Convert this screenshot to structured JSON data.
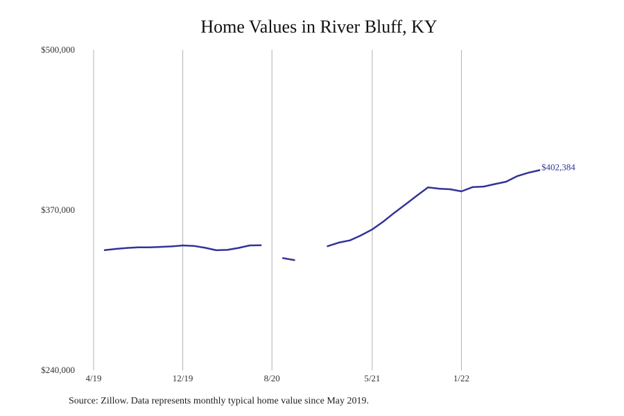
{
  "chart_data": {
    "type": "line",
    "title": "Home Values in River Bluff, KY",
    "xlabel": "",
    "ylabel": "",
    "x_ticks": [
      "4/19",
      "12/19",
      "8/20",
      "5/21",
      "1/22"
    ],
    "x_tick_dates": [
      "2019-04",
      "2019-12",
      "2020-08",
      "2021-05",
      "2022-01"
    ],
    "y_ticks": [
      "$240,000",
      "$370,000",
      "$500,000"
    ],
    "ylim": [
      240000,
      500000
    ],
    "xlim": [
      "2019-04",
      "2022-08"
    ],
    "grid": "vertical",
    "series": [
      {
        "color": "#333399",
        "points": [
          {
            "x": "2019-05",
            "y": 337500
          },
          {
            "x": "2019-06",
            "y": 338500
          },
          {
            "x": "2019-07",
            "y": 339300
          },
          {
            "x": "2019-08",
            "y": 339700
          },
          {
            "x": "2019-09",
            "y": 339800
          },
          {
            "x": "2019-10",
            "y": 340100
          },
          {
            "x": "2019-11",
            "y": 340500
          },
          {
            "x": "2019-12",
            "y": 341300
          },
          {
            "x": "2020-01",
            "y": 340900
          },
          {
            "x": "2020-02",
            "y": 339400
          },
          {
            "x": "2020-03",
            "y": 337400
          },
          {
            "x": "2020-04",
            "y": 337700
          },
          {
            "x": "2020-05",
            "y": 339300
          },
          {
            "x": "2020-06",
            "y": 341300
          },
          {
            "x": "2020-07",
            "y": 341400
          },
          {
            "x": "2020-08",
            "y": null
          },
          {
            "x": "2020-09",
            "y": 331000
          },
          {
            "x": "2020-10",
            "y": 329400
          },
          {
            "x": "2020-11",
            "y": null
          },
          {
            "x": "2020-12",
            "y": null
          },
          {
            "x": "2021-01",
            "y": 340700
          },
          {
            "x": "2021-02",
            "y": 343600
          },
          {
            "x": "2021-03",
            "y": 345400
          },
          {
            "x": "2021-04",
            "y": 349500
          },
          {
            "x": "2021-05",
            "y": 354300
          },
          {
            "x": "2021-06",
            "y": 360700
          },
          {
            "x": "2021-07",
            "y": 367900
          },
          {
            "x": "2021-08",
            "y": 374700
          },
          {
            "x": "2021-09",
            "y": 381700
          },
          {
            "x": "2021-10",
            "y": 388400
          },
          {
            "x": "2021-11",
            "y": 387400
          },
          {
            "x": "2021-12",
            "y": 386900
          },
          {
            "x": "2022-01",
            "y": 385200
          },
          {
            "x": "2022-02",
            "y": 388600
          },
          {
            "x": "2022-03",
            "y": 389100
          },
          {
            "x": "2022-04",
            "y": 391100
          },
          {
            "x": "2022-05",
            "y": 393000
          },
          {
            "x": "2022-06",
            "y": 397500
          },
          {
            "x": "2022-07",
            "y": 400300
          },
          {
            "x": "2022-08",
            "y": 402384
          }
        ]
      }
    ],
    "end_label": "$402,384",
    "source": "Source: Zillow. Data represents monthly typical home value since May 2019."
  }
}
